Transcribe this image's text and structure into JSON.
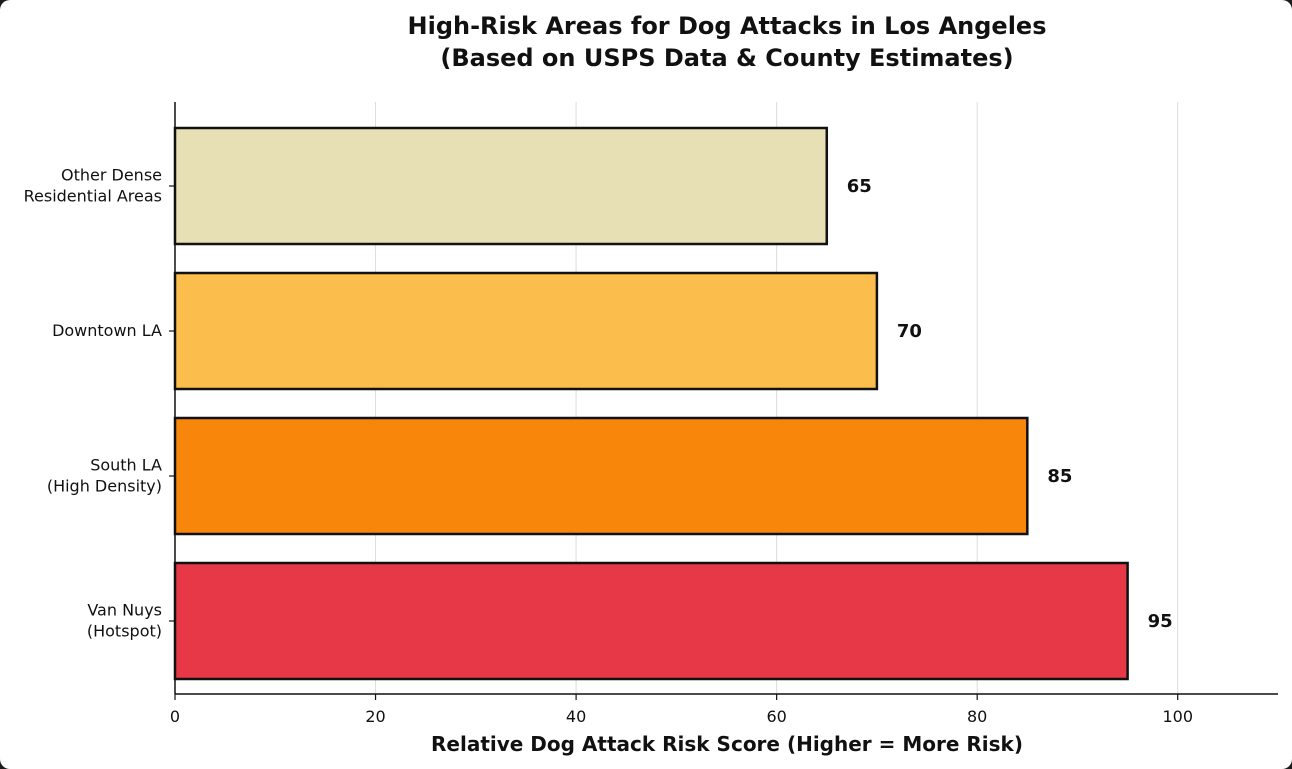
{
  "chart_data": {
    "type": "bar",
    "orientation": "horizontal",
    "title": "High-Risk Areas for Dog Attacks in Los Angeles",
    "subtitle": "(Based on USPS Data & County Estimates)",
    "xlabel": "Relative Dog Attack Risk Score (Higher = More Risk)",
    "ylabel": "",
    "xlim": [
      0,
      110
    ],
    "xticks": [
      0,
      20,
      40,
      60,
      80,
      100
    ],
    "grid": "vertical",
    "categories": [
      [
        "Other Dense",
        "Residential Areas"
      ],
      [
        "Downtown LA"
      ],
      [
        "South LA",
        "(High Density)"
      ],
      [
        "Van Nuys",
        "(Hotspot)"
      ]
    ],
    "values": [
      65,
      70,
      85,
      95
    ],
    "colors": [
      "#e8e0b5",
      "#fbbd4b",
      "#f8860a",
      "#e73848"
    ],
    "edge_color": "#111111"
  }
}
